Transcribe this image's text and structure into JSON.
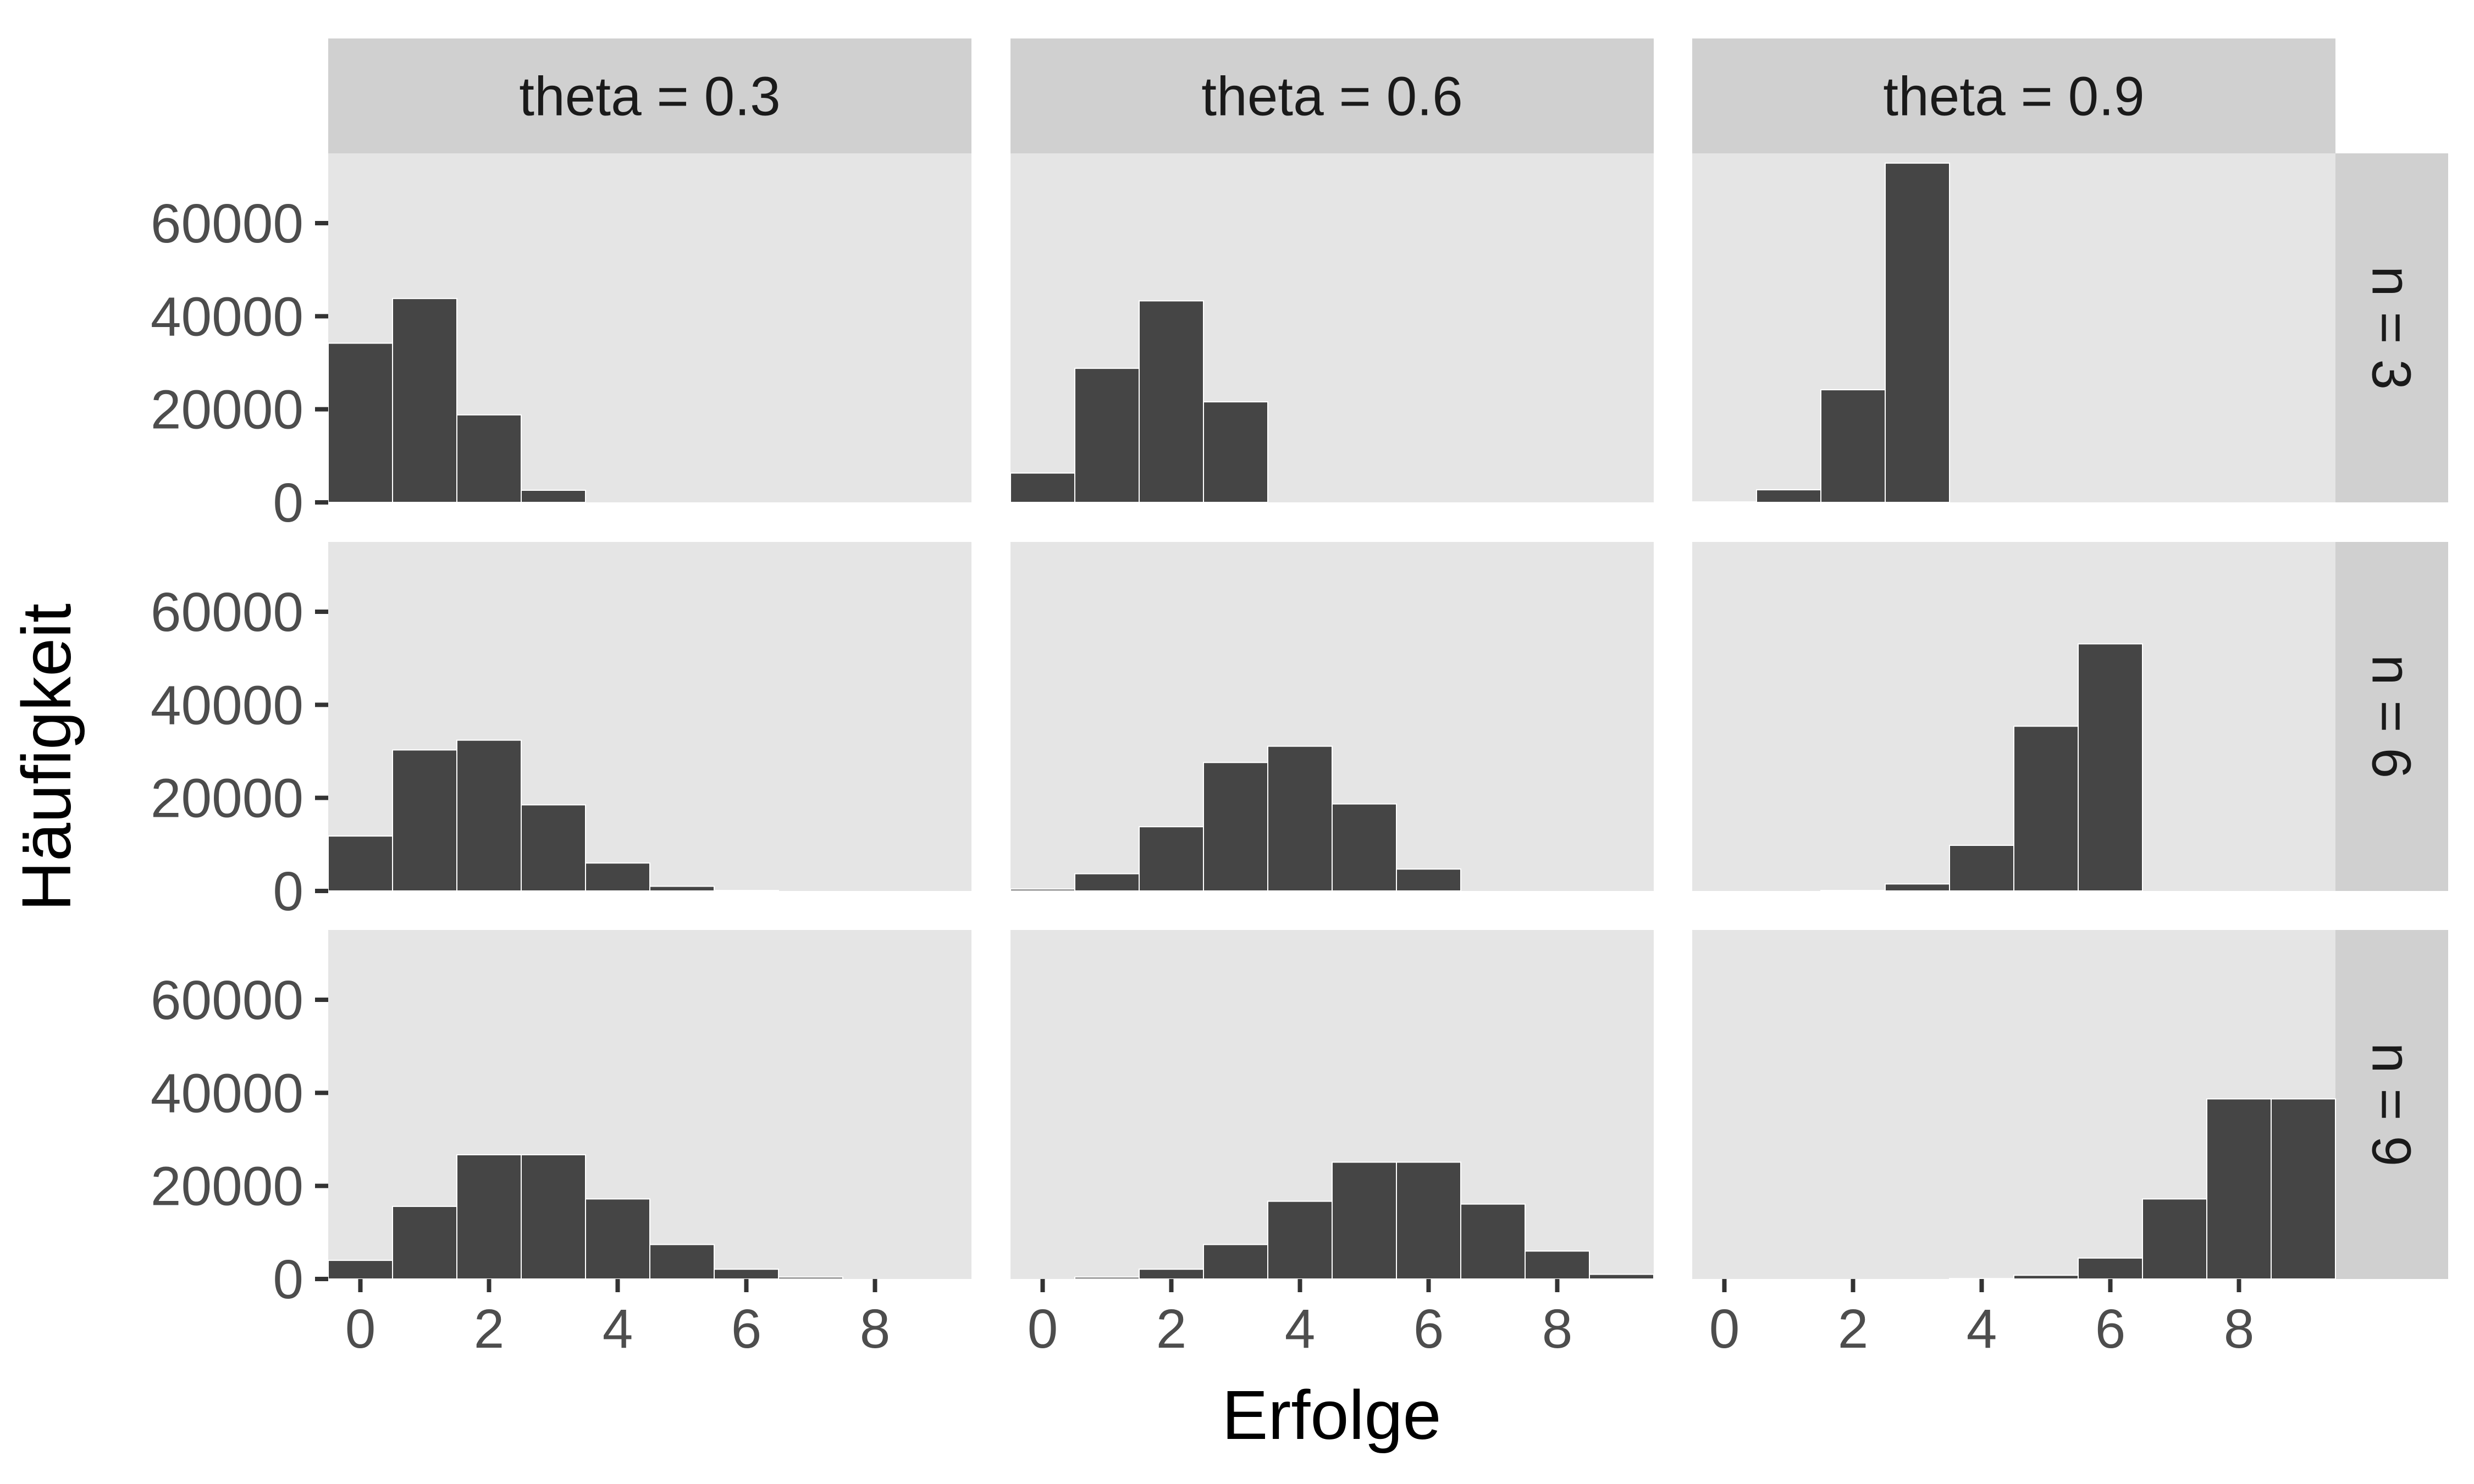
{
  "chart_data": {
    "type": "bar",
    "subtype": "faceted-histogram",
    "xlabel": "Erfolge",
    "ylabel": "Häufigkeit",
    "column_facets": [
      "theta = 0.3",
      "theta = 0.6",
      "theta = 0.9"
    ],
    "row_facets": [
      "n = 3",
      "n = 6",
      "n = 9"
    ],
    "x_ticks": [
      0,
      2,
      4,
      6,
      8
    ],
    "y_ticks": [
      0,
      20000,
      40000,
      60000
    ],
    "xlim": [
      -0.5,
      9.5
    ],
    "ylim": [
      0,
      75000
    ],
    "bin_width": 1,
    "bar_color": "#454545",
    "panel_bg": "#e5e5e5",
    "strip_bg": "#d0d0d0",
    "panels": [
      {
        "row": "n = 3",
        "col": "theta = 0.3",
        "x": [
          0,
          1,
          2,
          3
        ],
        "values": [
          34200,
          43800,
          18800,
          2600
        ]
      },
      {
        "row": "n = 3",
        "col": "theta = 0.6",
        "x": [
          0,
          1,
          2,
          3
        ],
        "values": [
          6300,
          28800,
          43300,
          21600
        ]
      },
      {
        "row": "n = 3",
        "col": "theta = 0.9",
        "x": [
          0,
          1,
          2,
          3
        ],
        "values": [
          100,
          2700,
          24200,
          72900
        ]
      },
      {
        "row": "n = 6",
        "col": "theta = 0.3",
        "x": [
          0,
          1,
          2,
          3,
          4,
          5,
          6
        ],
        "values": [
          11800,
          30300,
          32400,
          18500,
          6000,
          1000,
          100
        ]
      },
      {
        "row": "n = 6",
        "col": "theta = 0.6",
        "x": [
          0,
          1,
          2,
          3,
          4,
          5,
          6
        ],
        "values": [
          400,
          3700,
          13800,
          27600,
          31100,
          18700,
          4700
        ]
      },
      {
        "row": "n = 6",
        "col": "theta = 0.9",
        "x": [
          0,
          1,
          2,
          3,
          4,
          5,
          6
        ],
        "values": [
          0,
          0,
          100,
          1500,
          9800,
          35400,
          53100
        ]
      },
      {
        "row": "n = 9",
        "col": "theta = 0.3",
        "x": [
          0,
          1,
          2,
          3,
          4,
          5,
          6,
          7,
          8,
          9
        ],
        "values": [
          4000,
          15600,
          26700,
          26700,
          17200,
          7400,
          2100,
          400,
          0,
          0
        ]
      },
      {
        "row": "n = 9",
        "col": "theta = 0.6",
        "x": [
          0,
          1,
          2,
          3,
          4,
          5,
          6,
          7,
          8,
          9
        ],
        "values": [
          0,
          400,
          2100,
          7400,
          16700,
          25100,
          25100,
          16100,
          6000,
          1000
        ]
      },
      {
        "row": "n = 9",
        "col": "theta = 0.9",
        "x": [
          0,
          1,
          2,
          3,
          4,
          5,
          6,
          7,
          8,
          9
        ],
        "values": [
          0,
          0,
          0,
          0,
          100,
          800,
          4500,
          17200,
          38700,
          38700
        ]
      }
    ]
  }
}
